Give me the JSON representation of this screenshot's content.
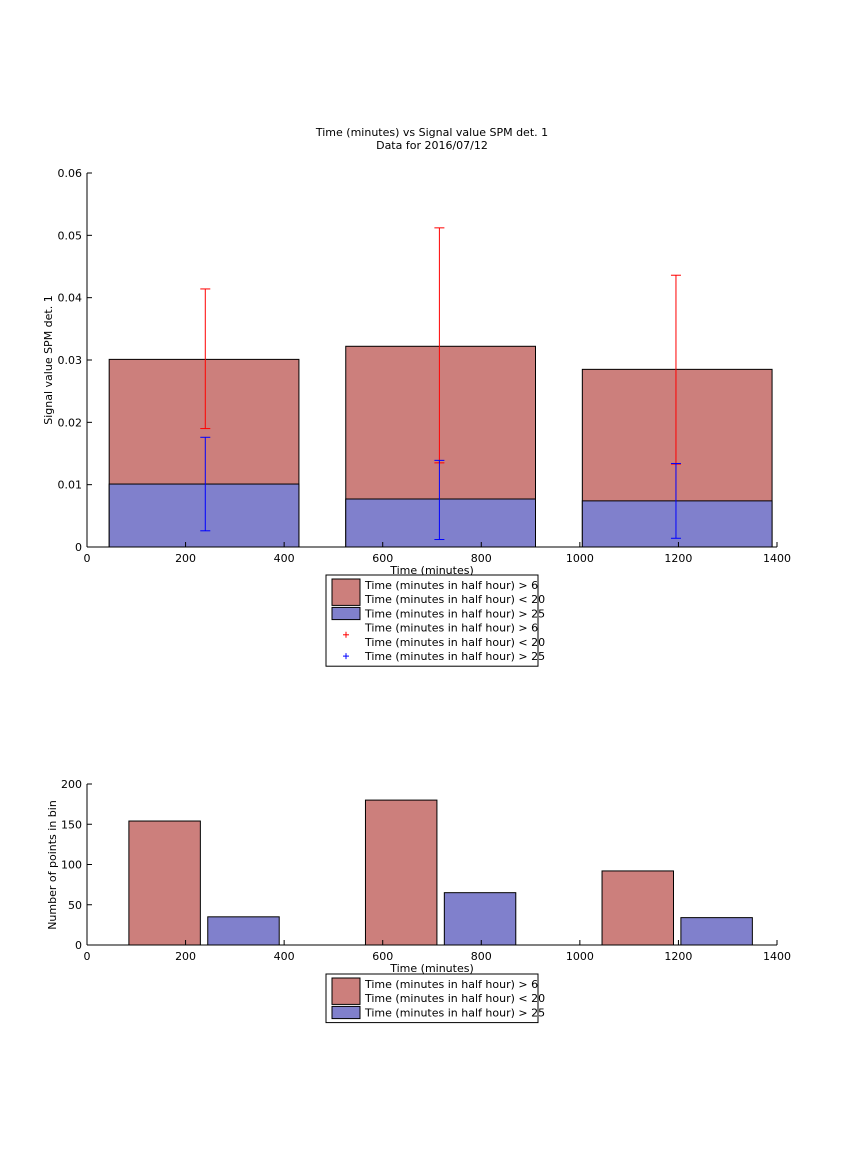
{
  "chart_data": [
    {
      "type": "bar",
      "title": "Time (minutes) vs Signal value SPM det. 1",
      "subtitle": "Data for 2016/07/12",
      "xlabel": "Time (minutes)",
      "ylabel": "Signal value SPM det. 1",
      "xlim": [
        0,
        1400
      ],
      "ylim": [
        0,
        0.06
      ],
      "xticks": [
        0,
        200,
        400,
        600,
        800,
        1000,
        1200,
        1400
      ],
      "yticks": [
        0,
        0.01,
        0.02,
        0.03,
        0.04,
        0.05,
        0.06
      ],
      "xtick_labels": [
        "0",
        "200",
        "400",
        "600",
        "800",
        "1000",
        "1200",
        "1400"
      ],
      "ytick_labels": [
        "0",
        "0.01",
        "0.02",
        "0.03",
        "0.04",
        "0.05",
        "0.06"
      ],
      "bars": {
        "starts": [
          45,
          525,
          1005
        ],
        "ends": [
          430,
          910,
          1390
        ],
        "series": [
          {
            "name": "Time (minutes in half hour) > 6\nTime (minutes in half hour) < 20",
            "color": "#cc7f7c",
            "values": [
              0.0301,
              0.0322,
              0.0285
            ]
          },
          {
            "name": "Time (minutes in half hour) > 25",
            "color": "#8080cc",
            "values": [
              0.0101,
              0.0077,
              0.0074
            ]
          }
        ]
      },
      "errorbars": [
        {
          "name": "Time (minutes in half hour) > 6\nTime (minutes in half hour) < 20",
          "color": "#ff0000",
          "x": [
            240,
            715,
            1195
          ],
          "lower": [
            0.019,
            0.0135,
            0.0133
          ],
          "upper": [
            0.0414,
            0.0512,
            0.0436
          ]
        },
        {
          "name": "Time (minutes in half hour) > 25",
          "color": "#0000ff",
          "x": [
            240,
            715,
            1195
          ],
          "lower": [
            0.0026,
            0.0012,
            0.0014
          ],
          "upper": [
            0.0176,
            0.0139,
            0.0134
          ]
        }
      ],
      "legend": {
        "placement": "bottom",
        "entries": [
          {
            "kind": "patch",
            "color": "#cc7f7c",
            "lines": [
              "Time (minutes in half hour) > 6",
              "Time (minutes in half hour) < 20"
            ]
          },
          {
            "kind": "patch",
            "color": "#8080cc",
            "lines": [
              "Time (minutes in half hour) > 25"
            ]
          },
          {
            "kind": "marker",
            "color": "#ff0000",
            "lines": [
              "Time (minutes in half hour) > 6",
              "Time (minutes in half hour) < 20"
            ]
          },
          {
            "kind": "marker",
            "color": "#0000ff",
            "lines": [
              "Time (minutes in half hour) > 25"
            ]
          }
        ]
      }
    },
    {
      "type": "bar",
      "title": "",
      "xlabel": "Time (minutes)",
      "ylabel": "Number of points in bin",
      "xlim": [
        0,
        1400
      ],
      "ylim": [
        0,
        200
      ],
      "xticks": [
        0,
        200,
        400,
        600,
        800,
        1000,
        1200,
        1400
      ],
      "yticks": [
        0,
        50,
        100,
        150,
        200
      ],
      "xtick_labels": [
        "0",
        "200",
        "400",
        "600",
        "800",
        "1000",
        "1200",
        "1400"
      ],
      "ytick_labels": [
        "0",
        "50",
        "100",
        "150",
        "200"
      ],
      "bars": {
        "series": [
          {
            "name": "Time (minutes in half hour) > 6\nTime (minutes in half hour) < 20",
            "color": "#cc7f7c",
            "starts": [
              85,
              565,
              1045
            ],
            "ends": [
              230,
              710,
              1190
            ],
            "values": [
              154,
              180,
              92
            ]
          },
          {
            "name": "Time (minutes in half hour) > 25",
            "color": "#8080cc",
            "starts": [
              245,
              725,
              1205
            ],
            "ends": [
              390,
              870,
              1350
            ],
            "values": [
              35,
              65,
              34
            ]
          }
        ]
      },
      "legend": {
        "placement": "bottom",
        "entries": [
          {
            "kind": "patch",
            "color": "#cc7f7c",
            "lines": [
              "Time (minutes in half hour) > 6",
              "Time (minutes in half hour) < 20"
            ]
          },
          {
            "kind": "patch",
            "color": "#8080cc",
            "lines": [
              "Time (minutes in half hour) > 25"
            ]
          }
        ]
      }
    }
  ]
}
